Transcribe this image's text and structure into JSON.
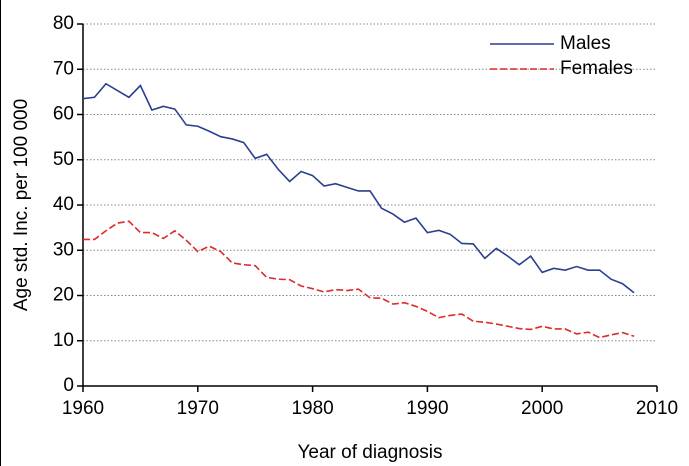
{
  "chart_data": {
    "type": "line",
    "xlabel": "Year of diagnosis",
    "ylabel": "Age std. Inc. per 100 000",
    "x": [
      1960,
      1961,
      1962,
      1963,
      1964,
      1965,
      1966,
      1967,
      1968,
      1969,
      1970,
      1971,
      1972,
      1973,
      1974,
      1975,
      1976,
      1977,
      1978,
      1979,
      1980,
      1981,
      1982,
      1983,
      1984,
      1985,
      1986,
      1987,
      1988,
      1989,
      1990,
      1991,
      1992,
      1993,
      1994,
      1995,
      1996,
      1997,
      1998,
      1999,
      2000,
      2001,
      2002,
      2003,
      2004,
      2005,
      2006,
      2007,
      2008
    ],
    "series": [
      {
        "name": "Males",
        "color": "#2a3f8f",
        "dash": "solid",
        "values": [
          63.5,
          63.8,
          66.8,
          65.3,
          63.8,
          66.4,
          61.0,
          61.8,
          61.2,
          57.7,
          57.4,
          56.3,
          55.1,
          54.6,
          53.8,
          50.3,
          51.2,
          47.9,
          45.2,
          47.4,
          46.5,
          44.2,
          44.7,
          43.9,
          43.1,
          43.1,
          39.3,
          38.0,
          36.2,
          37.1,
          33.9,
          34.4,
          33.5,
          31.5,
          31.4,
          28.2,
          30.4,
          28.7,
          26.8,
          28.7,
          25.1,
          26.0,
          25.6,
          26.4,
          25.6,
          25.6,
          23.6,
          22.6,
          20.6
        ]
      },
      {
        "name": "Females",
        "color": "#e0292b",
        "dash": "dashed",
        "values": [
          32.4,
          32.4,
          34.3,
          36.0,
          36.4,
          33.9,
          33.9,
          32.6,
          34.3,
          32.2,
          29.7,
          30.9,
          29.7,
          27.2,
          26.8,
          26.6,
          24.0,
          23.6,
          23.5,
          22.1,
          21.5,
          20.8,
          21.3,
          21.1,
          21.4,
          19.5,
          19.4,
          18.1,
          18.4,
          17.6,
          16.5,
          15.1,
          15.6,
          15.9,
          14.3,
          14.1,
          13.7,
          13.2,
          12.7,
          12.5,
          13.2,
          12.6,
          12.6,
          11.5,
          11.9,
          10.7,
          11.3,
          11.8,
          11.0
        ]
      }
    ],
    "xlim": [
      1960,
      2010
    ],
    "xticks": [
      1960,
      1970,
      1980,
      1990,
      2000,
      2010
    ],
    "ylim": [
      0,
      80
    ],
    "yticks": [
      0,
      10,
      20,
      30,
      40,
      50,
      60,
      70,
      80
    ],
    "grid": true,
    "legend": "upper right"
  }
}
